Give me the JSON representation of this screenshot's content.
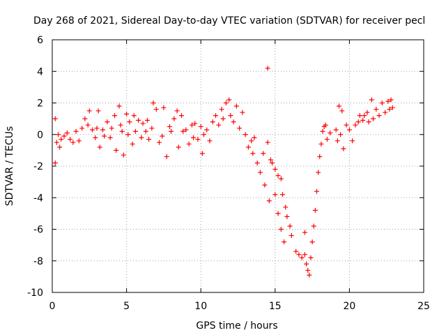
{
  "chart_data": {
    "type": "scatter",
    "title": "Day 268 of 2021, Sidereal Day-to-day VTEC variation (SDTVAR) for receiver pecl",
    "xlabel": "GPS time / hours",
    "ylabel": "SDTVAR / TECUs",
    "xlim": [
      0,
      25
    ],
    "ylim": [
      -10,
      6
    ],
    "xticks": [
      0,
      5,
      10,
      15,
      20,
      25
    ],
    "yticks": [
      -10,
      -8,
      -6,
      -4,
      -2,
      0,
      2,
      4,
      6
    ],
    "grid": true,
    "marker": "+",
    "series": [
      {
        "name": "SDTVAR",
        "color": "#ff0000",
        "points": [
          [
            0.2,
            1.0
          ],
          [
            0.2,
            -1.8
          ],
          [
            0.3,
            -0.5
          ],
          [
            0.4,
            0.0
          ],
          [
            0.5,
            -0.8
          ],
          [
            0.6,
            -0.3
          ],
          [
            0.8,
            -0.1
          ],
          [
            1.0,
            0.1
          ],
          [
            1.2,
            -0.3
          ],
          [
            1.4,
            -0.5
          ],
          [
            1.6,
            0.2
          ],
          [
            1.8,
            -0.4
          ],
          [
            2.0,
            0.4
          ],
          [
            2.2,
            1.0
          ],
          [
            2.4,
            0.6
          ],
          [
            2.5,
            1.5
          ],
          [
            2.7,
            0.3
          ],
          [
            2.9,
            -0.2
          ],
          [
            3.0,
            0.4
          ],
          [
            3.1,
            1.5
          ],
          [
            3.2,
            -0.8
          ],
          [
            3.4,
            0.3
          ],
          [
            3.5,
            -0.1
          ],
          [
            3.7,
            0.8
          ],
          [
            3.9,
            -0.2
          ],
          [
            4.0,
            0.4
          ],
          [
            4.2,
            1.2
          ],
          [
            4.3,
            -1.0
          ],
          [
            4.5,
            1.8
          ],
          [
            4.6,
            0.6
          ],
          [
            4.7,
            0.2
          ],
          [
            4.8,
            -1.3
          ],
          [
            5.0,
            1.3
          ],
          [
            5.1,
            0.0
          ],
          [
            5.2,
            0.8
          ],
          [
            5.4,
            -0.6
          ],
          [
            5.5,
            1.2
          ],
          [
            5.6,
            0.2
          ],
          [
            5.8,
            0.9
          ],
          [
            6.0,
            -0.2
          ],
          [
            6.1,
            0.7
          ],
          [
            6.3,
            0.2
          ],
          [
            6.4,
            0.9
          ],
          [
            6.5,
            -0.3
          ],
          [
            6.7,
            0.4
          ],
          [
            6.8,
            2.0
          ],
          [
            7.0,
            1.6
          ],
          [
            7.2,
            -0.5
          ],
          [
            7.4,
            -0.1
          ],
          [
            7.5,
            1.7
          ],
          [
            7.7,
            -1.4
          ],
          [
            7.9,
            0.5
          ],
          [
            8.0,
            0.2
          ],
          [
            8.2,
            1.0
          ],
          [
            8.4,
            1.5
          ],
          [
            8.5,
            -0.8
          ],
          [
            8.7,
            1.2
          ],
          [
            8.8,
            0.2
          ],
          [
            9.0,
            0.3
          ],
          [
            9.2,
            -0.6
          ],
          [
            9.4,
            0.6
          ],
          [
            9.5,
            -0.2
          ],
          [
            9.6,
            0.7
          ],
          [
            9.8,
            -0.3
          ],
          [
            10.0,
            0.5
          ],
          [
            10.1,
            -1.2
          ],
          [
            10.2,
            0.0
          ],
          [
            10.4,
            0.3
          ],
          [
            10.6,
            -0.4
          ],
          [
            10.8,
            0.8
          ],
          [
            11.0,
            1.2
          ],
          [
            11.2,
            0.6
          ],
          [
            11.4,
            1.6
          ],
          [
            11.5,
            1.0
          ],
          [
            11.7,
            2.0
          ],
          [
            11.9,
            2.2
          ],
          [
            12.0,
            1.2
          ],
          [
            12.2,
            0.8
          ],
          [
            12.4,
            1.8
          ],
          [
            12.6,
            0.4
          ],
          [
            12.8,
            1.4
          ],
          [
            13.0,
            0.0
          ],
          [
            13.2,
            -0.8
          ],
          [
            13.4,
            -0.4
          ],
          [
            13.5,
            -1.2
          ],
          [
            13.6,
            -0.2
          ],
          [
            13.8,
            -1.8
          ],
          [
            14.0,
            -2.4
          ],
          [
            14.2,
            -1.2
          ],
          [
            14.3,
            -3.2
          ],
          [
            14.5,
            4.2
          ],
          [
            14.5,
            -0.5
          ],
          [
            14.6,
            -4.2
          ],
          [
            14.7,
            -1.6
          ],
          [
            14.8,
            -1.8
          ],
          [
            15.0,
            -2.2
          ],
          [
            15.0,
            -3.8
          ],
          [
            15.2,
            -2.6
          ],
          [
            15.2,
            -5.0
          ],
          [
            15.4,
            -2.8
          ],
          [
            15.4,
            -6.0
          ],
          [
            15.5,
            -3.8
          ],
          [
            15.6,
            -6.8
          ],
          [
            15.7,
            -4.6
          ],
          [
            15.8,
            -5.2
          ],
          [
            16.0,
            -5.8
          ],
          [
            16.1,
            -6.4
          ],
          [
            16.4,
            -7.4
          ],
          [
            16.6,
            -7.6
          ],
          [
            16.8,
            -7.8
          ],
          [
            17.0,
            -7.6
          ],
          [
            17.0,
            -6.2
          ],
          [
            17.1,
            -8.2
          ],
          [
            17.2,
            -8.6
          ],
          [
            17.3,
            -8.9
          ],
          [
            17.4,
            -7.8
          ],
          [
            17.5,
            -6.8
          ],
          [
            17.6,
            -5.8
          ],
          [
            17.7,
            -4.8
          ],
          [
            17.8,
            -3.6
          ],
          [
            17.9,
            -2.4
          ],
          [
            18.0,
            -1.4
          ],
          [
            18.1,
            -0.6
          ],
          [
            18.2,
            0.2
          ],
          [
            18.3,
            0.5
          ],
          [
            18.4,
            0.6
          ],
          [
            18.5,
            -0.3
          ],
          [
            18.7,
            0.1
          ],
          [
            19.1,
            0.3
          ],
          [
            19.2,
            -0.4
          ],
          [
            19.3,
            1.8
          ],
          [
            19.4,
            0.0
          ],
          [
            19.5,
            1.5
          ],
          [
            19.6,
            -0.9
          ],
          [
            19.8,
            0.6
          ],
          [
            20.0,
            0.3
          ],
          [
            20.2,
            -0.4
          ],
          [
            20.4,
            0.6
          ],
          [
            20.6,
            0.8
          ],
          [
            20.7,
            1.2
          ],
          [
            20.9,
            0.9
          ],
          [
            21.0,
            1.2
          ],
          [
            21.2,
            1.4
          ],
          [
            21.3,
            0.8
          ],
          [
            21.5,
            2.2
          ],
          [
            21.6,
            1.0
          ],
          [
            21.8,
            1.6
          ],
          [
            22.0,
            1.2
          ],
          [
            22.2,
            2.0
          ],
          [
            22.4,
            1.4
          ],
          [
            22.6,
            2.1
          ],
          [
            22.7,
            1.6
          ],
          [
            22.8,
            2.2
          ],
          [
            22.9,
            1.7
          ]
        ]
      }
    ]
  }
}
